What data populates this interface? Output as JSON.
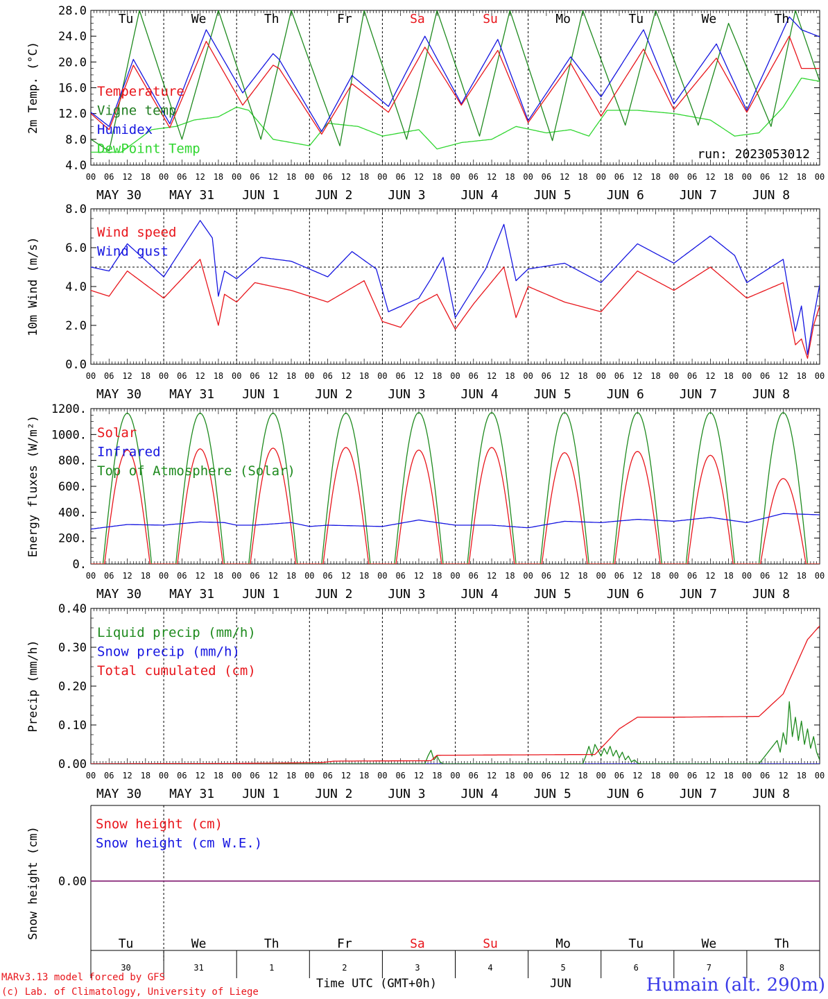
{
  "colors": {
    "red": "#e8151b",
    "green": "#1e8a1e",
    "blue": "#1515e0",
    "lime": "#30d630",
    "dark_green": "#1f7d1f",
    "purple": "#7a2d8a"
  },
  "x_axis": {
    "hour_ticks": [
      "00",
      "06",
      "12",
      "18",
      "00",
      "06",
      "12",
      "18",
      "00",
      "06",
      "12",
      "18",
      "00",
      "06",
      "12",
      "18",
      "00",
      "06",
      "12",
      "18",
      "00",
      "06",
      "12",
      "18",
      "00",
      "06",
      "12",
      "18",
      "00",
      "06",
      "12",
      "18",
      "00",
      "06",
      "12",
      "18",
      "00",
      "06",
      "12",
      "18",
      "00"
    ],
    "date_labels": [
      "MAY 30",
      "MAY 31",
      "JUN  1",
      "JUN  2",
      "JUN  3",
      "JUN  4",
      "JUN  5",
      "JUN  6",
      "JUN  7",
      "JUN  8"
    ],
    "weekdays": [
      "Tu",
      "We",
      "Th",
      "Fr",
      "Sa",
      "Su",
      "Mo",
      "Tu",
      "We",
      "Th"
    ],
    "weekend_days": [
      "Sa",
      "Su"
    ],
    "day_numbers": [
      "30",
      "31",
      "1",
      "2",
      "3",
      "4",
      "5",
      "6",
      "7",
      "8"
    ],
    "month_label": "JUN",
    "title": "Time UTC (GMT+0h)"
  },
  "footer": {
    "credit_line1": "MARv3.13 model forced by GFS",
    "credit_line2": "(c) Lab. of Climatology, University of Liege",
    "station": "Humain (alt. 290m)"
  },
  "chart_data": [
    {
      "type": "line",
      "title": "",
      "ylabel": "2m Temp. (°C)",
      "ylim": [
        4,
        28
      ],
      "yticks": [
        "4.0",
        "8.0",
        "12.0",
        "16.0",
        "20.0",
        "24.0",
        "28.0"
      ],
      "annotation": "run: 2023053012",
      "x_unit": "hours since 2023-05-30 00 UTC",
      "series": [
        {
          "name": "Temperature",
          "color": "red",
          "x": [
            0,
            6,
            14,
            26,
            38,
            50,
            60,
            62,
            76,
            86,
            98,
            110,
            122,
            134,
            144,
            158,
            168,
            182,
            192,
            206,
            216,
            230,
            234,
            240
          ],
          "values": [
            12,
            9.5,
            19.5,
            9.8,
            23.2,
            13.3,
            19.5,
            19.0,
            8.8,
            16.6,
            12.2,
            22.3,
            13.3,
            21.8,
            10.6,
            19.8,
            11.6,
            22.0,
            12.6,
            20.6,
            12.2,
            24.0,
            19.0,
            19.0
          ]
        },
        {
          "name": "Humidex",
          "color": "blue",
          "x": [
            0,
            6,
            14,
            26,
            38,
            50,
            60,
            62,
            76,
            86,
            98,
            110,
            122,
            134,
            144,
            158,
            168,
            182,
            192,
            206,
            216,
            230,
            234,
            240
          ],
          "values": [
            12.2,
            10.0,
            20.4,
            10.4,
            25.0,
            15.2,
            21.3,
            20.4,
            9.2,
            17.9,
            13.1,
            24.0,
            13.5,
            23.5,
            10.9,
            20.8,
            14.6,
            25.0,
            13.5,
            22.8,
            12.5,
            27.0,
            25.0,
            23.9
          ]
        },
        {
          "name": "Vigne temp",
          "color": "green",
          "x": [
            0,
            6,
            16,
            30,
            42,
            56,
            66,
            82,
            90,
            104,
            114,
            128,
            138,
            152,
            162,
            176,
            186,
            200,
            210,
            224,
            232,
            240
          ],
          "values": [
            8.0,
            6.2,
            28.0,
            8.0,
            28.0,
            8.0,
            28.0,
            7.0,
            28.0,
            8.0,
            28.0,
            8.5,
            28.0,
            7.8,
            28.0,
            10.2,
            28.0,
            10.2,
            26.0,
            10.0,
            28.0,
            17.0
          ]
        },
        {
          "name": "DewPoint Temp",
          "color": "lime",
          "x": [
            0,
            10,
            20,
            28,
            34,
            42,
            48,
            52,
            60,
            72,
            78,
            88,
            96,
            108,
            114,
            122,
            132,
            140,
            150,
            158,
            164,
            170,
            180,
            192,
            204,
            212,
            220,
            228,
            234,
            240
          ],
          "values": [
            6.0,
            6.0,
            9.5,
            10.0,
            11.0,
            11.5,
            13.0,
            12.5,
            8.0,
            7.0,
            10.5,
            10.0,
            8.5,
            9.5,
            6.5,
            7.5,
            8.0,
            10.0,
            9.0,
            9.5,
            8.5,
            12.5,
            12.5,
            12.0,
            11.0,
            8.5,
            9.0,
            13.0,
            17.5,
            17.0
          ]
        }
      ]
    },
    {
      "type": "line",
      "title": "",
      "ylabel": "10m Wind (m/s)",
      "ylim": [
        0,
        8
      ],
      "yticks": [
        "0.0",
        "2.0",
        "4.0",
        "6.0",
        "8.0"
      ],
      "reference_line": 5.0,
      "x_unit": "hours since 2023-05-30 00 UTC",
      "series": [
        {
          "name": "Wind speed",
          "color": "red",
          "x": [
            0,
            6,
            12,
            24,
            36,
            42,
            44,
            48,
            54,
            66,
            78,
            90,
            96,
            102,
            108,
            114,
            120,
            126,
            136,
            140,
            144,
            156,
            168,
            180,
            192,
            204,
            216,
            228,
            232,
            234,
            236,
            238,
            240
          ],
          "values": [
            3.8,
            3.5,
            4.8,
            3.4,
            5.4,
            2.0,
            3.6,
            3.2,
            4.2,
            3.8,
            3.2,
            4.3,
            2.2,
            1.9,
            3.1,
            3.6,
            1.8,
            3.1,
            5.0,
            2.4,
            4.0,
            3.2,
            2.7,
            4.8,
            3.8,
            5.0,
            3.4,
            4.2,
            1.0,
            1.3,
            0.3,
            2.0,
            3.0
          ]
        },
        {
          "name": "Wind gust",
          "color": "blue",
          "x": [
            0,
            6,
            12,
            24,
            36,
            40,
            42,
            44,
            48,
            56,
            66,
            78,
            86,
            94,
            98,
            108,
            112,
            116,
            120,
            130,
            136,
            140,
            144,
            156,
            168,
            180,
            192,
            204,
            212,
            216,
            228,
            232,
            234,
            236,
            238,
            240
          ],
          "values": [
            5.0,
            4.8,
            6.2,
            4.5,
            7.4,
            6.5,
            3.5,
            4.8,
            4.4,
            5.5,
            5.3,
            4.5,
            5.8,
            4.9,
            2.7,
            3.4,
            4.4,
            5.5,
            2.4,
            4.9,
            7.2,
            4.3,
            4.9,
            5.2,
            4.2,
            6.2,
            5.2,
            6.6,
            5.6,
            4.2,
            5.4,
            1.7,
            3.0,
            0.5,
            2.4,
            4.1
          ]
        }
      ]
    },
    {
      "type": "line",
      "title": "",
      "ylabel": "Energy fluxes (W/m²)",
      "ylim": [
        0,
        1200
      ],
      "yticks": [
        "0.",
        "200.",
        "400.",
        "600.",
        "800.",
        "1000.",
        "1200."
      ],
      "x_unit": "hours since 2023-05-30 00 UTC",
      "series": [
        {
          "name": "Solar",
          "color": "red",
          "daily_peak_hour": 12,
          "day_length_hours": 15,
          "daily_peaks": [
            880,
            890,
            895,
            900,
            880,
            900,
            860,
            870,
            840,
            660
          ]
        },
        {
          "name": "Infrared",
          "color": "blue",
          "x": [
            0,
            12,
            24,
            36,
            44,
            48,
            54,
            66,
            72,
            78,
            96,
            108,
            120,
            132,
            144,
            156,
            168,
            180,
            192,
            204,
            216,
            228,
            240
          ],
          "values": [
            270,
            305,
            300,
            325,
            320,
            300,
            300,
            320,
            290,
            300,
            290,
            340,
            300,
            300,
            280,
            330,
            320,
            345,
            330,
            360,
            320,
            390,
            380
          ]
        },
        {
          "name": "Top of Atmosphere (Solar)",
          "color": "green",
          "daily_peak_hour": 12,
          "day_length_hours": 16,
          "daily_peaks": [
            1165,
            1165,
            1165,
            1165,
            1170,
            1170,
            1170,
            1170,
            1170,
            1170
          ]
        }
      ]
    },
    {
      "type": "line",
      "title": "",
      "ylabel": "Precip (mm/h)",
      "ylim": [
        0,
        0.4
      ],
      "yticks": [
        "0.00",
        "0.10",
        "0.20",
        "0.30",
        "0.40"
      ],
      "x_unit": "hours since 2023-05-30 00 UTC",
      "series": [
        {
          "name": "Liquid precip (mm/h)",
          "color": "green",
          "x": [
            0,
            110,
            111,
            112,
            113,
            114,
            115,
            116,
            162,
            163,
            164,
            165,
            166,
            167,
            168,
            169,
            170,
            171,
            172,
            173,
            174,
            175,
            176,
            177,
            178,
            179,
            180,
            181,
            182,
            183,
            184,
            220,
            222,
            224,
            226,
            227,
            228,
            229,
            230,
            231,
            232,
            233,
            234,
            235,
            236,
            237,
            238,
            239,
            240
          ],
          "values": [
            0,
            0,
            0.02,
            0.035,
            0.01,
            0.02,
            0.005,
            0,
            0,
            0.02,
            0.045,
            0.02,
            0.05,
            0.035,
            0.02,
            0.04,
            0.025,
            0.045,
            0.02,
            0.035,
            0.015,
            0.03,
            0.01,
            0.02,
            0.005,
            0.01,
            0.002,
            0,
            0,
            0,
            0,
            0,
            0.02,
            0.04,
            0.06,
            0.03,
            0.08,
            0.05,
            0.16,
            0.07,
            0.12,
            0.06,
            0.11,
            0.05,
            0.09,
            0.04,
            0.07,
            0.03,
            0.01
          ]
        },
        {
          "name": "Snow precip (mm/h)",
          "color": "blue",
          "x": [
            0,
            240
          ],
          "values": [
            0,
            0
          ]
        },
        {
          "name": "Total cumulated (cm)",
          "color": "red",
          "x": [
            0,
            48,
            76,
            80,
            112,
            114,
            166,
            174,
            180,
            192,
            220,
            228,
            236,
            240
          ],
          "values": [
            0,
            0.001,
            0.003,
            0.007,
            0.008,
            0.022,
            0.024,
            0.09,
            0.12,
            0.12,
            0.122,
            0.18,
            0.32,
            0.355
          ]
        }
      ]
    },
    {
      "type": "line",
      "title": "",
      "ylabel": "Snow height (cm)",
      "yticks": [
        "0.00"
      ],
      "x_unit": "hours since 2023-05-30 00 UTC",
      "series": [
        {
          "name": "Snow height (cm)",
          "color": "red",
          "x": [
            0,
            240
          ],
          "values": [
            0,
            0
          ]
        },
        {
          "name": "Snow height (cm W.E.)",
          "color": "blue",
          "x": [
            0,
            240
          ],
          "values": [
            0,
            0
          ]
        }
      ]
    }
  ]
}
